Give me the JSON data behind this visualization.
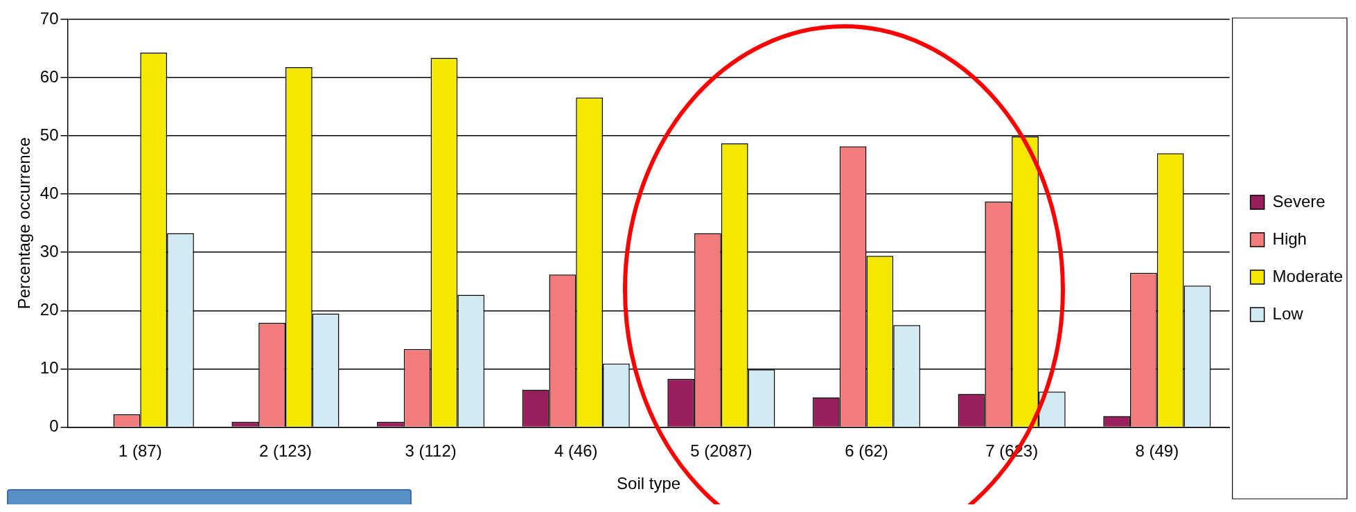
{
  "chart_data": {
    "type": "bar",
    "xlabel": "Soil type",
    "ylabel": "Percentage occurrence",
    "categories": [
      "1 (87)",
      "2 (123)",
      "3 (112)",
      "4 (46)",
      "5 (2087)",
      "6 (62)",
      "7 (623)",
      "8 (49)"
    ],
    "series": [
      {
        "name": "Severe",
        "color": "#991f5c",
        "values": [
          0,
          0.9,
          0.9,
          6.4,
          8.3,
          5.1,
          5.7,
          1.9
        ]
      },
      {
        "name": "High",
        "color": "#f27c7c",
        "values": [
          2.2,
          17.9,
          13.4,
          26.2,
          33.3,
          48.2,
          38.7,
          26.5
        ]
      },
      {
        "name": "Moderate",
        "color": "#f5e800",
        "values": [
          64.3,
          61.8,
          63.4,
          56.6,
          48.7,
          29.4,
          49.9,
          47.0
        ]
      },
      {
        "name": "Low",
        "color": "#d2ebf2",
        "values": [
          33.3,
          19.5,
          22.7,
          10.9,
          9.9,
          17.5,
          6.1,
          24.3
        ]
      }
    ],
    "ylim": [
      0,
      70
    ],
    "yticks": [
      0,
      10,
      20,
      30,
      40,
      50,
      60,
      70
    ],
    "grid": "y",
    "legend": "right"
  }
}
